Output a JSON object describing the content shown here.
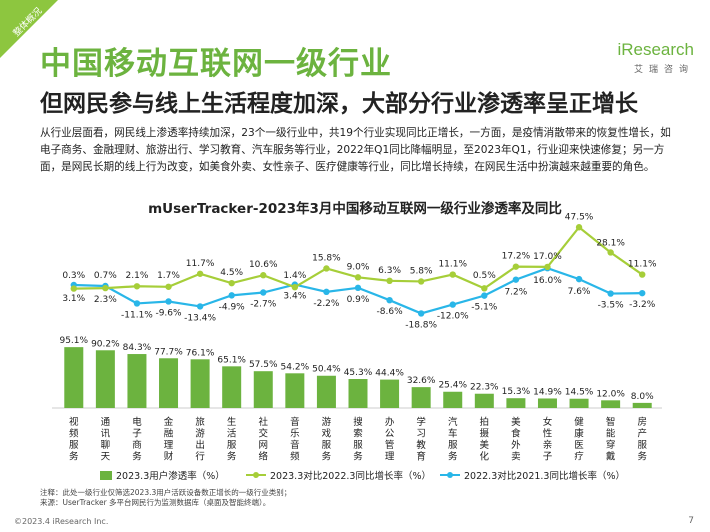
{
  "header": {
    "corner_tag": "整体概况",
    "title": "中国移动互联网一级行业",
    "subtitle": "但网民参与线上生活程度加深，大部分行业渗透率呈正增长",
    "logo_main": "iResearch",
    "logo_sub": "艾瑞咨询"
  },
  "body_text": "从行业层面看，网民线上渗透率持续加深，23个一级行业中，共19个行业实现同比正增长，一方面，是疫情消散带来的恢复性增长，如电子商务、金融理财、旅游出行、学习教育、汽车服务等行业，2022年Q1同比降幅明显，至2023年Q1，行业迎来快速修复；另一方面，是网民长期的线上行为改变，如美食外卖、女性亲子、医疗健康等行业，同比增长持续，在网民生活中扮演越来越重要的角色。",
  "footer": {
    "note1": "注释：此处一级行业仅筛选2023.3用户活跃设备数正增长的一级行业类别；",
    "note2": "来源：UserTracker 多平台网民行为监测数据库（桌面及智能终端）。",
    "copyright": "©2023.4 iResearch Inc.",
    "page": "7"
  },
  "colors": {
    "bar": "#6cb33f",
    "line_2023": "#a6ce39",
    "line_2022": "#29b6e8",
    "title": "#6cb33f"
  },
  "chart_data": {
    "type": "bar",
    "title": "mUserTracker-2023年3月中国移动互联网一级行业渗透率及同比",
    "legend_position": "bottom",
    "categories": [
      "视频服务",
      "通讯聊天",
      "电子商务",
      "金融理财",
      "旅游出行",
      "生活服务",
      "社交网络",
      "音乐音频",
      "游戏服务",
      "搜索服务",
      "办公管理",
      "学习教育",
      "汽车服务",
      "拍摄美化",
      "美食外卖",
      "女性亲子",
      "健康医疗",
      "智能穿戴",
      "房产服务"
    ],
    "series": [
      {
        "name": "2023.3用户渗透率（%）",
        "kind": "bar",
        "values": [
          95.1,
          90.2,
          84.3,
          77.7,
          76.1,
          65.1,
          57.5,
          54.2,
          50.4,
          45.3,
          44.4,
          32.6,
          25.4,
          22.3,
          15.3,
          14.9,
          14.5,
          12.0,
          8.0
        ],
        "labels": [
          "95.1%",
          "90.2%",
          "84.3%",
          "77.7%",
          "76.1%",
          "65.1%",
          "57.5%",
          "54.2%",
          "50.4%",
          "45.3%",
          "44.4%",
          "32.6%",
          "25.4%",
          "22.3%",
          "15.3%",
          "14.9%",
          "14.5%",
          "12.0%",
          "8.0%"
        ]
      },
      {
        "name": "2023.3对比2022.3同比增长率（%）",
        "kind": "line",
        "values": [
          0.3,
          0.7,
          2.1,
          1.7,
          11.7,
          4.5,
          10.6,
          1.4,
          15.8,
          9.0,
          6.3,
          5.8,
          11.1,
          0.5,
          17.2,
          17.0,
          47.5,
          28.1,
          11.1
        ],
        "labels": [
          "0.3%",
          "0.7%",
          "2.1%",
          "1.7%",
          "11.7%",
          "4.5%",
          "10.6%",
          "1.4%",
          "15.8%",
          "9.0%",
          "6.3%",
          "5.8%",
          "11.1%",
          "0.5%",
          "17.2%",
          "17.0%",
          "47.5%",
          "28.1%",
          "11.1%"
        ]
      },
      {
        "name": "2022.3对比2021.3同比增长率（%）",
        "kind": "line",
        "values": [
          3.1,
          2.3,
          -11.1,
          -9.6,
          -13.4,
          -4.9,
          -2.7,
          3.4,
          -2.2,
          0.9,
          -8.6,
          -18.8,
          -12.0,
          -5.1,
          7.2,
          16.0,
          7.6,
          -3.5,
          -3.2
        ],
        "labels": [
          "3.1%",
          "2.3%",
          "-11.1%",
          "-9.6%",
          "-13.4%",
          "-4.9%",
          "-2.7%",
          "3.4%",
          "-2.2%",
          "0.9%",
          "-8.6%",
          "-18.8%",
          "-12.0%",
          "-5.1%",
          "7.2%",
          "16.0%",
          "7.6%",
          "-3.5%",
          "-3.2%"
        ]
      }
    ]
  }
}
